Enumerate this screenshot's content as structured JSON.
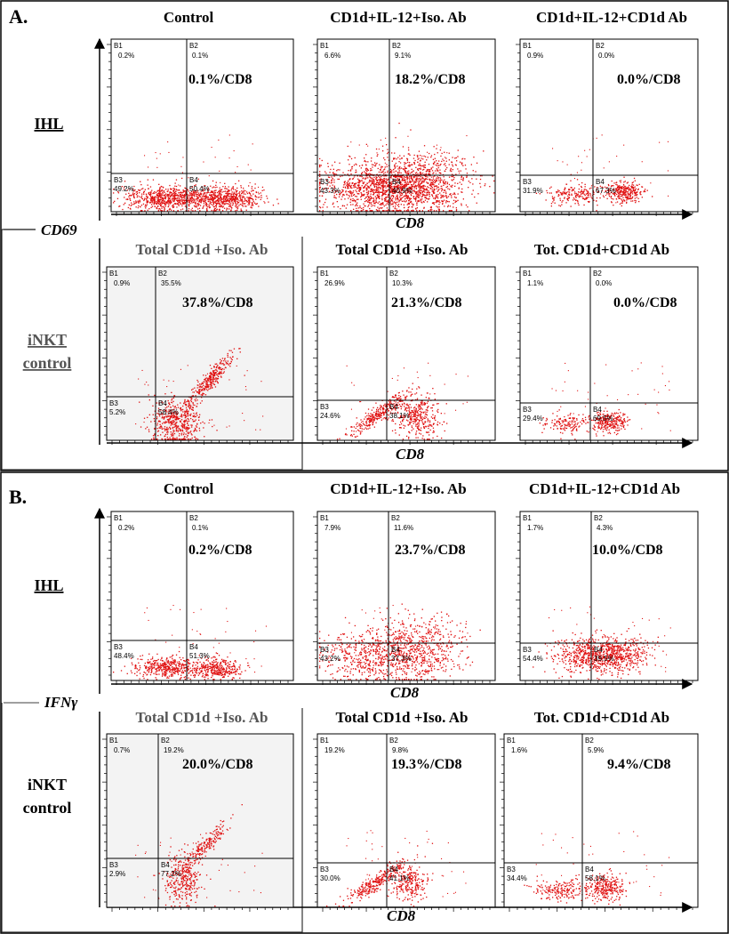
{
  "figure": {
    "section_a": {
      "letter": "A.",
      "y_marker": "CD69",
      "x_marker_ihl": "CD8",
      "x_marker_inkt": "CD8",
      "row_ihl_label": "IHL",
      "row_inkt_label_1": "iNKT",
      "row_inkt_label_2": "control"
    },
    "section_b": {
      "letter": "B.",
      "y_marker": "IFNγ",
      "x_marker_ihl": "CD8",
      "x_marker_inkt": "CD8",
      "row_ihl_label": "IHL",
      "row_inkt_label_1": "iNKT",
      "row_inkt_label_2": "control"
    }
  },
  "chart_data": [
    {
      "type": "scatter",
      "section": "A",
      "row": "IHL",
      "title": "Control",
      "marker_y": "CD69",
      "marker_x": "CD8",
      "quadrants": {
        "B1": "0.2%",
        "B2": "0.1%",
        "B3": "49.2%",
        "B4": "50.4%"
      },
      "annotation": "0.1%/CD8"
    },
    {
      "type": "scatter",
      "section": "A",
      "row": "IHL",
      "title": "CD1d+IL-12+Iso. Ab",
      "marker_y": "CD69",
      "marker_x": "CD8",
      "quadrants": {
        "B1": "6.6%",
        "B2": "9.1%",
        "B3": "43.3%",
        "B4": "40.9%"
      },
      "annotation": "18.2%/CD8"
    },
    {
      "type": "scatter",
      "section": "A",
      "row": "IHL",
      "title": "CD1d+IL-12+CD1d Ab",
      "marker_y": "CD69",
      "marker_x": "CD8",
      "quadrants": {
        "B1": "0.9%",
        "B2": "0.0%",
        "B3": "31.9%",
        "B4": "67.3%"
      },
      "annotation": "0.0%/CD8"
    },
    {
      "type": "scatter",
      "section": "A",
      "row": "iNKT control",
      "title": "Total CD1d +Iso. Ab",
      "marker_y": "CD69",
      "marker_x": "CD8",
      "quadrants": {
        "B1": "0.9%",
        "B2": "35.5%",
        "B3": "5.2%",
        "B4": "58.4%"
      },
      "annotation": "37.8%/CD8"
    },
    {
      "type": "scatter",
      "section": "A",
      "row": "iNKT control",
      "title": "Total CD1d +Iso. Ab",
      "marker_y": "CD69",
      "marker_x": "CD8",
      "quadrants": {
        "B1": "26.9%",
        "B2": "10.3%",
        "B3": "24.6%",
        "B4": "38.1%"
      },
      "annotation": "21.3%/CD8"
    },
    {
      "type": "scatter",
      "section": "A",
      "row": "iNKT control",
      "title": "Tot. CD1d+CD1d Ab",
      "marker_y": "CD69",
      "marker_x": "CD8",
      "quadrants": {
        "B1": "1.1%",
        "B2": "0.0%",
        "B3": "29.4%",
        "B4": "69.5%"
      },
      "annotation": "0.0%/CD8"
    },
    {
      "type": "scatter",
      "section": "B",
      "row": "IHL",
      "title": "Control",
      "marker_y": "IFNγ",
      "marker_x": "CD8",
      "quadrants": {
        "B1": "0.2%",
        "B2": "0.1%",
        "B3": "48.4%",
        "B4": "51.3%"
      },
      "annotation": "0.2%/CD8"
    },
    {
      "type": "scatter",
      "section": "B",
      "row": "IHL",
      "title": "CD1d+IL-12+Iso. Ab",
      "marker_y": "IFNγ",
      "marker_x": "CD8",
      "quadrants": {
        "B1": "7.9%",
        "B2": "11.6%",
        "B3": "43.2%",
        "B4": "37.3%"
      },
      "annotation": "23.7%/CD8"
    },
    {
      "type": "scatter",
      "section": "B",
      "row": "IHL",
      "title": "CD1d+IL-12+CD1d Ab",
      "marker_y": "IFNγ",
      "marker_x": "CD8",
      "quadrants": {
        "B1": "1.7%",
        "B2": "4.3%",
        "B3": "54.4%",
        "B4": "39.5%"
      },
      "annotation": "10.0%/CD8"
    },
    {
      "type": "scatter",
      "section": "B",
      "row": "iNKT control",
      "title": "Total CD1d +Iso. Ab",
      "marker_y": "IFNγ",
      "marker_x": "CD8",
      "quadrants": {
        "B1": "0.7%",
        "B2": "19.2%",
        "B3": "2.9%",
        "B4": "77.2%"
      },
      "annotation": "20.0%/CD8"
    },
    {
      "type": "scatter",
      "section": "B",
      "row": "iNKT control",
      "title": "Total CD1d +Iso. Ab",
      "marker_y": "IFNγ",
      "marker_x": "CD8",
      "quadrants": {
        "B1": "19.2%",
        "B2": "9.8%",
        "B3": "30.0%",
        "B4": "41.1%"
      },
      "annotation": "19.3%/CD8"
    },
    {
      "type": "scatter",
      "section": "B",
      "row": "iNKT control",
      "title": "Tot. CD1d+CD1d Ab",
      "marker_y": "IFNγ",
      "marker_x": "CD8",
      "quadrants": {
        "B1": "1.6%",
        "B2": "5.9%",
        "B3": "34.4%",
        "B4": "58.1%"
      },
      "annotation": "9.4%/CD8"
    }
  ]
}
